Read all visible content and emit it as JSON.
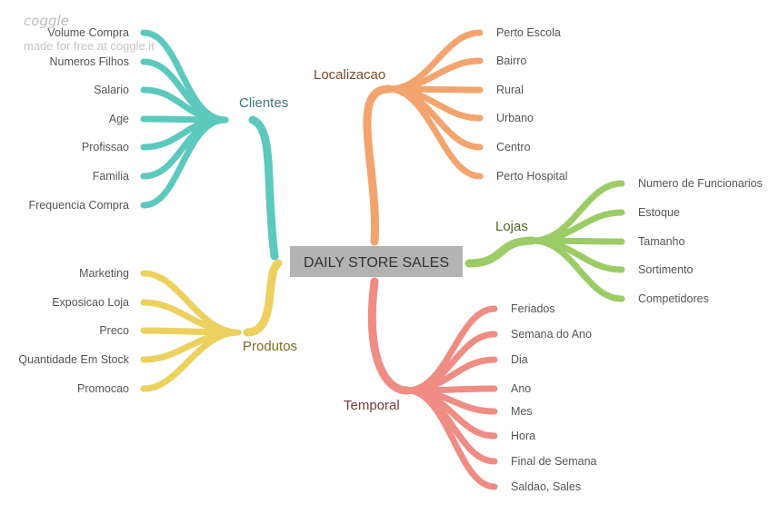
{
  "watermark": {
    "logo": "coggle",
    "tagline": "made for free at coggle.it"
  },
  "center": "DAILY STORE SALES",
  "branches": {
    "clientes": {
      "label": "Clientes",
      "color": "#5cc9be",
      "text_color": "#3d7a74",
      "items": [
        "Volume Compra",
        "Numeros Filhos",
        "Salario",
        "Age",
        "Profissao",
        "Familia",
        "Frequencia Compra"
      ]
    },
    "produtos": {
      "label": "Produtos",
      "color": "#ecd15e",
      "text_color": "#7a6a22",
      "items": [
        "Marketing",
        "Exposicao Loja",
        "Preco",
        "Quantidade Em Stock",
        "Promocao"
      ]
    },
    "localizacao": {
      "label": "Localizacao",
      "color": "#f3a46e",
      "text_color": "#7a4a2a",
      "items": [
        "Perto Escola",
        "Bairro",
        "Rural",
        "Urbano",
        "Centro",
        "Perto Hospital"
      ]
    },
    "lojas": {
      "label": "Lojas",
      "color": "#9ccc65",
      "text_color": "#4f6b2a",
      "items": [
        "Numero de Funcionarios",
        "Estoque",
        "Tamanho",
        "Sortimento",
        "Competidores"
      ]
    },
    "temporal": {
      "label": "Temporal",
      "color": "#ef8c84",
      "text_color": "#7a3a36",
      "items": [
        "Feriados",
        "Semana do Ano",
        "Dia",
        "Ano",
        "Mes",
        "Hora",
        "Final de Semana",
        "Saldao, Sales"
      ]
    }
  }
}
